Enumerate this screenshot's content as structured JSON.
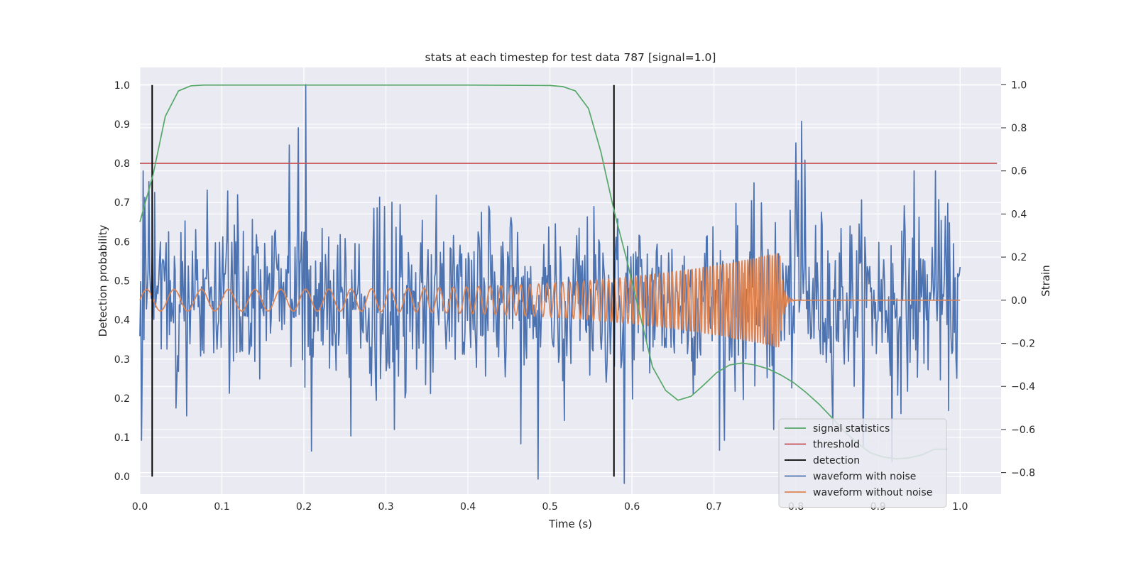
{
  "chart_data": {
    "type": "line",
    "title": "stats at each timestep for test data 787 [signal=1.0]",
    "xlabel": "Time (s)",
    "ylabel_left": "Detection probability",
    "ylabel_right": "Strain",
    "xlim": [
      0.0,
      1.05
    ],
    "ylim_left": [
      -0.045,
      1.045
    ],
    "ylim_right": [
      -0.9,
      1.08
    ],
    "x_ticks": [
      "0.0",
      "0.1",
      "0.2",
      "0.3",
      "0.4",
      "0.5",
      "0.6",
      "0.7",
      "0.8",
      "0.9",
      "1.0"
    ],
    "y_left_ticks": [
      "0.0",
      "0.1",
      "0.2",
      "0.3",
      "0.4",
      "0.5",
      "0.6",
      "0.7",
      "0.8",
      "0.9",
      "1.0"
    ],
    "y_right_ticks": [
      "−0.8",
      "−0.6",
      "−0.4",
      "−0.2",
      "0.0",
      "0.2",
      "0.4",
      "0.6",
      "0.8",
      "1.0"
    ],
    "grid": true,
    "legend_position": "lower-right",
    "colors": {
      "signal_statistics": "#55a868",
      "threshold": "#c44e52",
      "detection": "#000000",
      "waveform_with_noise": "#4c72b0",
      "waveform_without_noise": "#dd8452",
      "plot_background": "#eaeaf2",
      "grid": "#ffffff"
    },
    "series": [
      {
        "name": "signal statistics",
        "axis": "left",
        "x": [
          0.0,
          0.016,
          0.031,
          0.047,
          0.062,
          0.078,
          0.094,
          0.109,
          0.125,
          0.2,
          0.3,
          0.4,
          0.5,
          0.516,
          0.531,
          0.547,
          0.562,
          0.578,
          0.594,
          0.609,
          0.625,
          0.641,
          0.656,
          0.672,
          0.688,
          0.703,
          0.719,
          0.734,
          0.75,
          0.766,
          0.781,
          0.797,
          0.812,
          0.828,
          0.844,
          0.859,
          0.875,
          0.891,
          0.906,
          0.922,
          0.938,
          0.953,
          0.969,
          0.984
        ],
        "values": [
          0.65,
          0.77,
          0.92,
          0.985,
          0.998,
          1.0,
          1.0,
          1.0,
          1.0,
          1.0,
          1.0,
          1.0,
          0.999,
          0.996,
          0.985,
          0.94,
          0.83,
          0.68,
          0.55,
          0.42,
          0.28,
          0.22,
          0.195,
          0.205,
          0.235,
          0.265,
          0.285,
          0.29,
          0.285,
          0.275,
          0.26,
          0.24,
          0.215,
          0.185,
          0.15,
          0.115,
          0.085,
          0.06,
          0.05,
          0.045,
          0.048,
          0.055,
          0.07,
          0.07
        ]
      },
      {
        "name": "threshold",
        "axis": "left",
        "x": [
          0.0,
          1.045
        ],
        "values": [
          0.8,
          0.8
        ]
      },
      {
        "name": "detection",
        "axis": "left",
        "type": "vlines",
        "x": [
          0.015,
          0.578
        ],
        "ymin": 0.0,
        "ymax": 1.0
      },
      {
        "name": "waveform with noise",
        "axis": "right",
        "x_start": 0.0,
        "x_end": 1.0,
        "n_points": 1000,
        "noise_std": 0.2,
        "spikes": [
          [
            0.002,
            -0.65
          ],
          [
            0.004,
            0.6
          ],
          [
            0.011,
            0.55
          ],
          [
            0.018,
            0.5
          ],
          [
            0.044,
            -0.5
          ],
          [
            0.182,
            0.72
          ],
          [
            0.193,
            0.8
          ],
          [
            0.202,
            1.0
          ],
          [
            0.209,
            -0.7
          ],
          [
            0.257,
            -0.63
          ],
          [
            0.31,
            -0.6
          ],
          [
            0.485,
            -0.83
          ],
          [
            0.591,
            -0.85
          ],
          [
            0.713,
            -0.65
          ],
          [
            0.773,
            -0.6
          ],
          [
            0.8,
            0.73
          ],
          [
            0.807,
            0.83
          ],
          [
            0.811,
            0.65
          ],
          [
            0.917,
            -0.75
          ],
          [
            0.944,
            0.6
          ],
          [
            0.97,
            0.6
          ]
        ]
      },
      {
        "name": "waveform without noise",
        "axis": "right",
        "type": "chirp",
        "x_start": 0.0,
        "x_merger": 0.78,
        "x_end": 1.0,
        "amplitude_start": 0.05,
        "amplitude_merger": 0.22,
        "freq_start_hz": 30,
        "freq_merger_hz": 330
      }
    ]
  }
}
